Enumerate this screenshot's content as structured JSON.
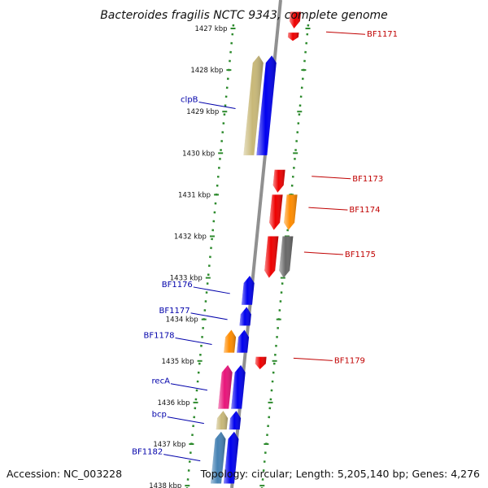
{
  "title": "Bacteroides fragilis NCTC 9343, complete genome",
  "accession": "Accession: NC_003228",
  "summary": "Topology: circular; Length: 5,205,140 bp; Genes: 4,276",
  "colors": {
    "background": "#ffffff",
    "backbone": "#909090",
    "ruler_dots": "#2e8b2e",
    "label_forward": "#c00000",
    "label_reverse": "#0000aa",
    "blue": "#0000ee",
    "red": "#ee0000",
    "orange": "#ff8c00",
    "khaki": "#c8b878",
    "gray": "#686868",
    "magenta": "#e8147a",
    "steel": "#4682b4"
  },
  "ticks": [
    {
      "label": "1427 kbp"
    },
    {
      "label": "1428 kbp"
    },
    {
      "label": "1429 kbp"
    },
    {
      "label": "1430 kbp"
    },
    {
      "label": "1431 kbp"
    },
    {
      "label": "1432 kbp"
    },
    {
      "label": "1433 kbp"
    },
    {
      "label": "1434 kbp"
    },
    {
      "label": "1435 kbp"
    },
    {
      "label": "1436 kbp"
    },
    {
      "label": "1437 kbp"
    },
    {
      "label": "1438 kbp"
    }
  ],
  "genes": [
    {
      "label": "",
      "strand": "+",
      "color": "red",
      "start_kbp": 1426.6,
      "end_kbp": 1427.0,
      "lane": "forward"
    },
    {
      "label": "BF1171",
      "strand": "+",
      "color": "red",
      "start_kbp": 1427.1,
      "end_kbp": 1427.3,
      "lane": "forward"
    },
    {
      "label": "clpB",
      "strand": "-",
      "color": "khaki",
      "start_kbp": 1427.65,
      "end_kbp": 1430.05,
      "lane": "reverse"
    },
    {
      "label": "",
      "strand": "-",
      "color": "blue",
      "start_kbp": 1427.65,
      "end_kbp": 1430.05,
      "lane": "reverse-inner"
    },
    {
      "label": "BF1173",
      "strand": "+",
      "color": "red",
      "start_kbp": 1430.4,
      "end_kbp": 1430.95,
      "lane": "forward"
    },
    {
      "label": "BF1174",
      "strand": "+",
      "color": "red",
      "start_kbp": 1431.0,
      "end_kbp": 1431.85,
      "lane": "forward"
    },
    {
      "label": "",
      "strand": "+",
      "color": "orange",
      "start_kbp": 1431.0,
      "end_kbp": 1431.85,
      "lane": "forward-outer"
    },
    {
      "label": "BF1175",
      "strand": "+",
      "color": "red",
      "start_kbp": 1432.0,
      "end_kbp": 1433.0,
      "lane": "forward"
    },
    {
      "label": "",
      "strand": "+",
      "color": "gray",
      "start_kbp": 1432.0,
      "end_kbp": 1433.0,
      "lane": "forward-outer"
    },
    {
      "label": "BF1176",
      "strand": "-",
      "color": "blue",
      "start_kbp": 1432.95,
      "end_kbp": 1433.65,
      "lane": "reverse-inner"
    },
    {
      "label": "BF1177",
      "strand": "-",
      "color": "blue",
      "start_kbp": 1433.7,
      "end_kbp": 1434.15,
      "lane": "reverse-inner"
    },
    {
      "label": "BF1178",
      "strand": "-",
      "color": "orange",
      "start_kbp": 1434.25,
      "end_kbp": 1434.8,
      "lane": "reverse"
    },
    {
      "label": "",
      "strand": "-",
      "color": "blue",
      "start_kbp": 1434.25,
      "end_kbp": 1434.8,
      "lane": "reverse-inner"
    },
    {
      "label": "BF1179",
      "strand": "+",
      "color": "red",
      "start_kbp": 1434.9,
      "end_kbp": 1435.2,
      "lane": "forward"
    },
    {
      "label": "recA",
      "strand": "-",
      "color": "magenta",
      "start_kbp": 1435.1,
      "end_kbp": 1436.15,
      "lane": "reverse"
    },
    {
      "label": "",
      "strand": "-",
      "color": "blue",
      "start_kbp": 1435.1,
      "end_kbp": 1436.15,
      "lane": "reverse-inner"
    },
    {
      "label": "bcp",
      "strand": "-",
      "color": "khaki",
      "start_kbp": 1436.2,
      "end_kbp": 1436.65,
      "lane": "reverse"
    },
    {
      "label": "",
      "strand": "-",
      "color": "blue",
      "start_kbp": 1436.2,
      "end_kbp": 1436.65,
      "lane": "reverse-inner"
    },
    {
      "label": "BF1182",
      "strand": "-",
      "color": "steel",
      "start_kbp": 1436.7,
      "end_kbp": 1437.95,
      "lane": "reverse"
    },
    {
      "label": "",
      "strand": "-",
      "color": "blue",
      "start_kbp": 1436.7,
      "end_kbp": 1437.95,
      "lane": "reverse-inner"
    }
  ]
}
